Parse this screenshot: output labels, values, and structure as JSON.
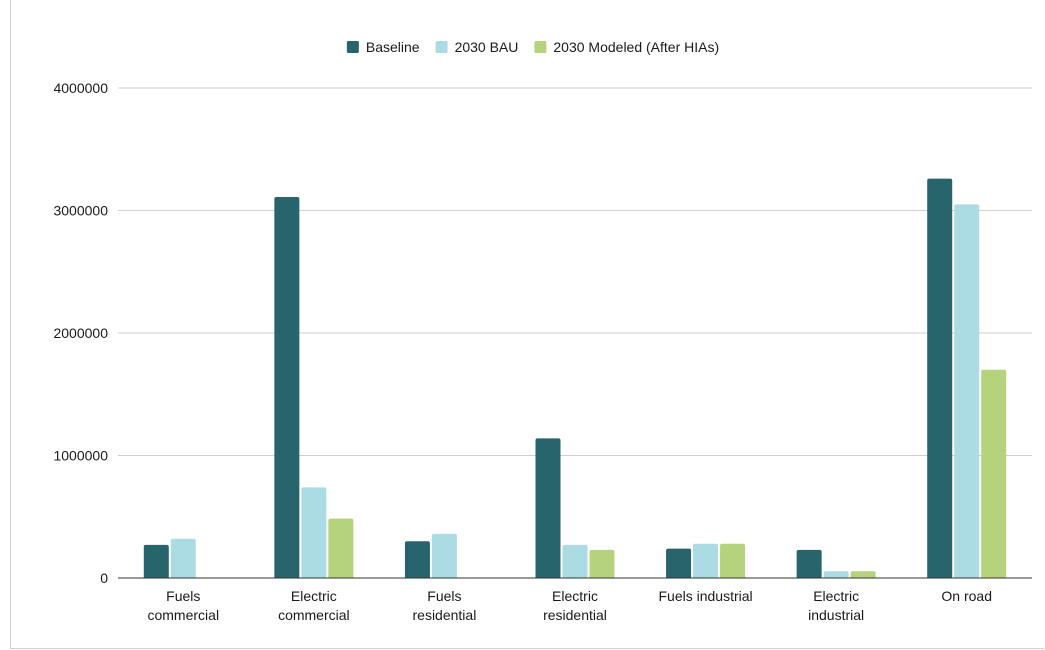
{
  "chart_data": {
    "type": "bar",
    "title": "",
    "xlabel": "",
    "ylabel": "",
    "ylim": [
      0,
      4000000
    ],
    "yticks": [
      "0",
      "1000000",
      "2000000",
      "3000000",
      "4000000"
    ],
    "grid": true,
    "legend_position": "top-center",
    "categories": [
      [
        "Fuels",
        "commercial"
      ],
      [
        "Electric",
        "commercial"
      ],
      [
        "Fuels",
        "residential"
      ],
      [
        "Electric",
        "residential"
      ],
      [
        "Fuels industrial"
      ],
      [
        "Electric",
        "industrial"
      ],
      [
        "On road"
      ]
    ],
    "series": [
      {
        "name": "Baseline",
        "color": "#28646c",
        "values": [
          270000,
          3110000,
          300000,
          1140000,
          240000,
          230000,
          3260000
        ]
      },
      {
        "name": "2030 BAU",
        "color": "#abdbe3",
        "values": [
          320000,
          740000,
          360000,
          270000,
          280000,
          55000,
          3050000
        ]
      },
      {
        "name": "2030 Modeled (After HIAs)",
        "color": "#b5d37c",
        "values": [
          null,
          485000,
          null,
          230000,
          280000,
          55000,
          1700000
        ]
      }
    ]
  }
}
